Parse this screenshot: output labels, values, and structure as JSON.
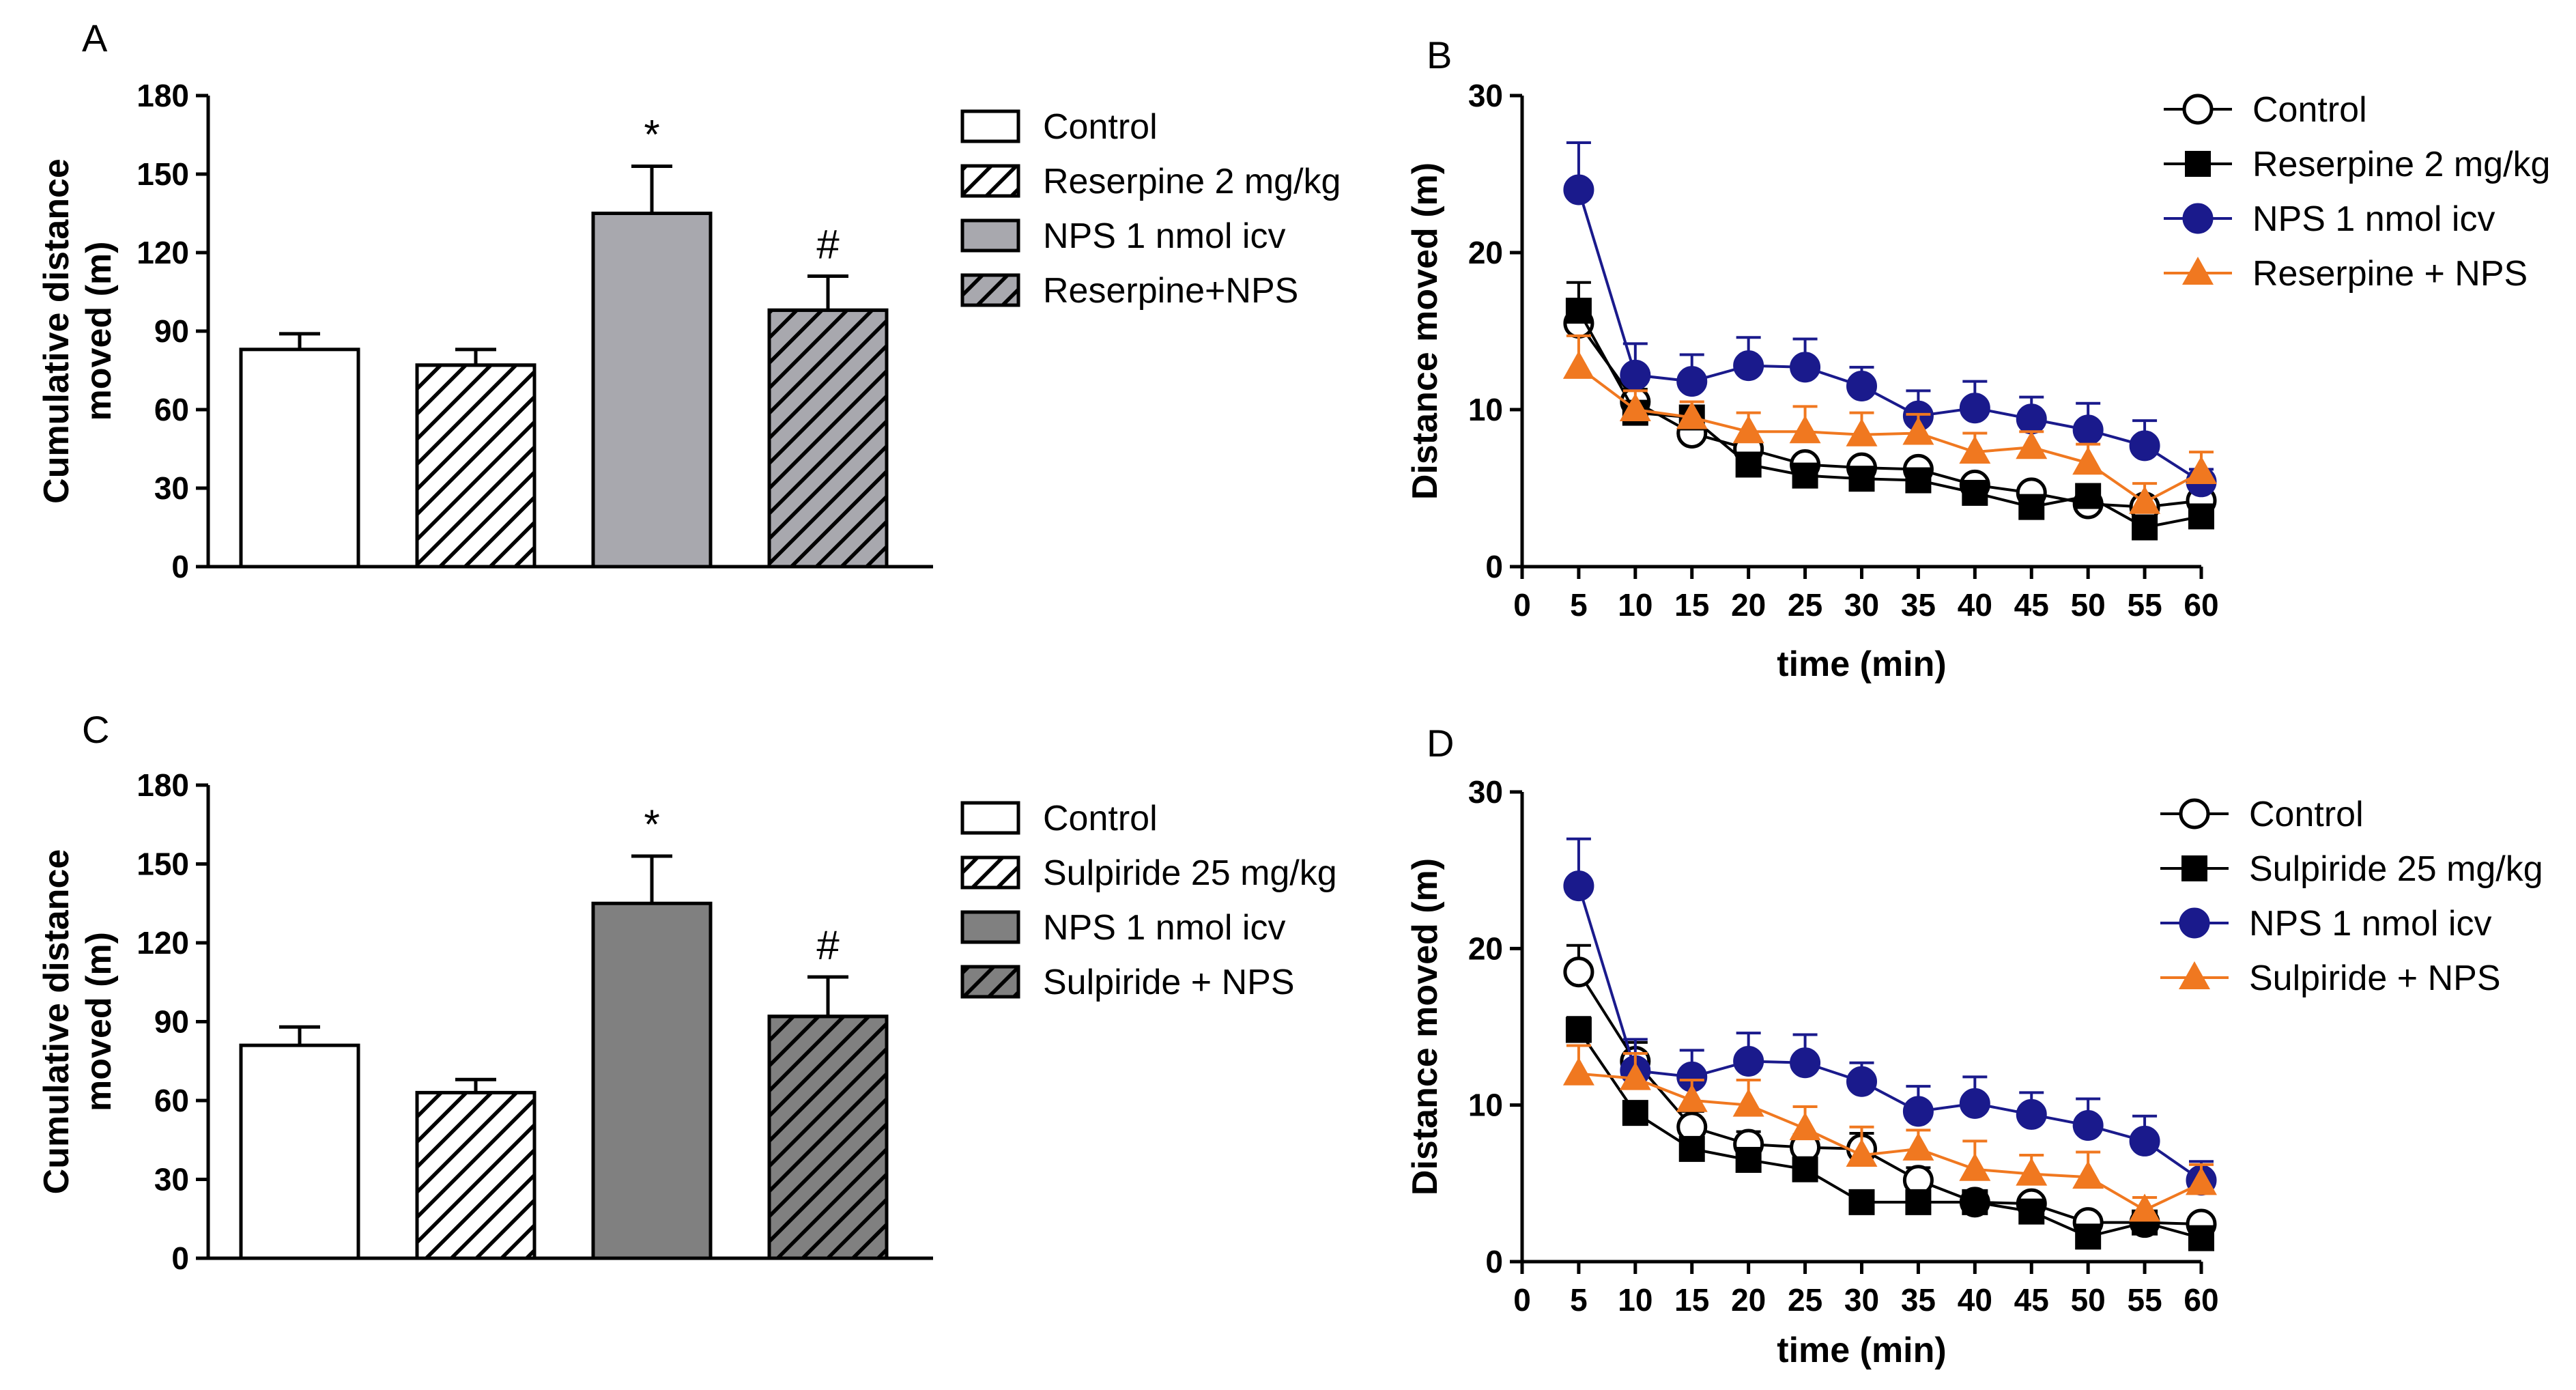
{
  "chart_data": [
    {
      "panel": "A",
      "type": "bar",
      "ylabel": "Cumulative distance moved (m)",
      "ylim": [
        0,
        180
      ],
      "yticks": [
        0,
        30,
        60,
        90,
        120,
        150,
        180
      ],
      "bars": [
        {
          "label": "Control",
          "value": 83,
          "err": 6,
          "sig": "",
          "fill": "#ffffff",
          "hatch": false
        },
        {
          "label": "Reserpine 2 mg/kg",
          "value": 77,
          "err": 6,
          "sig": "",
          "fill": "#ffffff",
          "hatch": true
        },
        {
          "label": "NPS 1 nmol icv",
          "value": 135,
          "err": 18,
          "sig": "*",
          "fill": "#a8a8ae",
          "hatch": false
        },
        {
          "label": "Reserpine+NPS",
          "value": 98,
          "err": 13,
          "sig": "#",
          "fill": "#a8a8ae",
          "hatch": true
        }
      ]
    },
    {
      "panel": "B",
      "type": "line",
      "ylabel": "Distance moved (m)",
      "xlabel": "time (min)",
      "xlim": [
        0,
        60
      ],
      "ylim": [
        0,
        30
      ],
      "xticks": [
        0,
        5,
        10,
        15,
        20,
        25,
        30,
        35,
        40,
        45,
        50,
        55,
        60
      ],
      "yticks": [
        0,
        10,
        20,
        30
      ],
      "x": [
        5,
        10,
        15,
        20,
        25,
        30,
        35,
        40,
        45,
        50,
        55,
        60
      ],
      "series": [
        {
          "name": "Control",
          "marker": "open-circle",
          "color": "#000000",
          "values": [
            15.5,
            10.5,
            8.5,
            7.5,
            6.5,
            6.3,
            6.2,
            5.2,
            4.7,
            4.0,
            3.8,
            4.2
          ],
          "err": [
            1.0,
            0.8,
            0.6,
            0.6,
            0.5,
            0.5,
            0.5,
            0.4,
            0.4,
            0.4,
            0.4,
            0.4
          ]
        },
        {
          "name": "Reserpine 2 mg/kg",
          "marker": "square",
          "color": "#000000",
          "values": [
            16.3,
            9.8,
            9.5,
            6.5,
            5.8,
            5.6,
            5.5,
            4.7,
            3.8,
            4.5,
            2.5,
            3.2
          ],
          "err": [
            1.8,
            0.6,
            0.6,
            0.5,
            0.5,
            0.5,
            0.5,
            0.5,
            0.4,
            0.5,
            0.4,
            0.4
          ]
        },
        {
          "name": "NPS 1 nmol icv",
          "marker": "circle",
          "color": "#1a1a8c",
          "values": [
            24.0,
            12.2,
            11.8,
            12.8,
            12.7,
            11.5,
            9.6,
            10.1,
            9.4,
            8.7,
            7.7,
            5.4
          ],
          "err": [
            3.0,
            2.0,
            1.7,
            1.8,
            1.8,
            1.2,
            1.6,
            1.7,
            1.4,
            1.7,
            1.6,
            0.8
          ]
        },
        {
          "name": "Reserpine + NPS",
          "marker": "triangle",
          "color": "#f07820",
          "values": [
            12.7,
            10.0,
            9.5,
            8.6,
            8.6,
            8.4,
            8.5,
            7.3,
            7.6,
            6.6,
            4.1,
            6.0
          ],
          "err": [
            2.0,
            1.2,
            1.0,
            1.2,
            1.6,
            1.4,
            1.2,
            1.2,
            1.0,
            1.2,
            1.2,
            1.3
          ]
        }
      ]
    },
    {
      "panel": "C",
      "type": "bar",
      "ylabel": "Cumulative distance moved (m)",
      "ylim": [
        0,
        180
      ],
      "yticks": [
        0,
        30,
        60,
        90,
        120,
        150,
        180
      ],
      "bars": [
        {
          "label": "Control",
          "value": 81,
          "err": 7,
          "sig": "",
          "fill": "#ffffff",
          "hatch": false
        },
        {
          "label": "Sulpiride 25 mg/kg",
          "value": 63,
          "err": 5,
          "sig": "",
          "fill": "#ffffff",
          "hatch": true
        },
        {
          "label": "NPS 1 nmol icv",
          "value": 135,
          "err": 18,
          "sig": "*",
          "fill": "#808080",
          "hatch": false
        },
        {
          "label": "Sulpiride + NPS",
          "value": 92,
          "err": 15,
          "sig": "#",
          "fill": "#808080",
          "hatch": true
        }
      ]
    },
    {
      "panel": "D",
      "type": "line",
      "ylabel": "Distance moved (m)",
      "xlabel": "time (min)",
      "xlim": [
        0,
        60
      ],
      "ylim": [
        0,
        30
      ],
      "xticks": [
        0,
        5,
        10,
        15,
        20,
        25,
        30,
        35,
        40,
        45,
        50,
        55,
        60
      ],
      "yticks": [
        0,
        10,
        20,
        30
      ],
      "x": [
        5,
        10,
        15,
        20,
        25,
        30,
        35,
        40,
        45,
        50,
        55,
        60
      ],
      "series": [
        {
          "name": "Control",
          "marker": "open-circle",
          "color": "#000000",
          "values": [
            18.5,
            12.8,
            8.6,
            7.5,
            7.3,
            7.2,
            5.2,
            3.8,
            3.7,
            2.5,
            2.5,
            2.4
          ],
          "err": [
            1.7,
            1.2,
            1.0,
            0.8,
            0.8,
            1.0,
            0.8,
            0.6,
            0.5,
            0.5,
            0.4,
            0.4
          ]
        },
        {
          "name": "Sulpiride 25 mg/kg",
          "marker": "square",
          "color": "#000000",
          "values": [
            14.8,
            9.5,
            7.2,
            6.5,
            5.9,
            3.8,
            3.8,
            3.8,
            3.2,
            1.6,
            2.5,
            1.5
          ],
          "err": [
            0.8,
            0.6,
            0.6,
            0.5,
            0.5,
            0.4,
            0.4,
            0.4,
            0.4,
            0.3,
            0.3,
            0.3
          ]
        },
        {
          "name": "NPS 1 nmol icv",
          "marker": "circle",
          "color": "#1a1a8c",
          "values": [
            24.0,
            12.2,
            11.8,
            12.8,
            12.7,
            11.5,
            9.6,
            10.1,
            9.4,
            8.7,
            7.7,
            5.2
          ],
          "err": [
            3.0,
            2.0,
            1.7,
            1.8,
            1.8,
            1.2,
            1.6,
            1.7,
            1.4,
            1.7,
            1.6,
            1.2
          ]
        },
        {
          "name": "Sulpiride + NPS",
          "marker": "triangle",
          "color": "#f07820",
          "values": [
            12.0,
            11.7,
            10.3,
            10.0,
            8.5,
            6.8,
            7.2,
            5.9,
            5.6,
            5.4,
            3.3,
            5.0
          ],
          "err": [
            1.8,
            1.6,
            1.3,
            1.6,
            1.4,
            1.8,
            1.2,
            1.8,
            1.2,
            1.6,
            0.8,
            1.2
          ]
        }
      ]
    }
  ]
}
